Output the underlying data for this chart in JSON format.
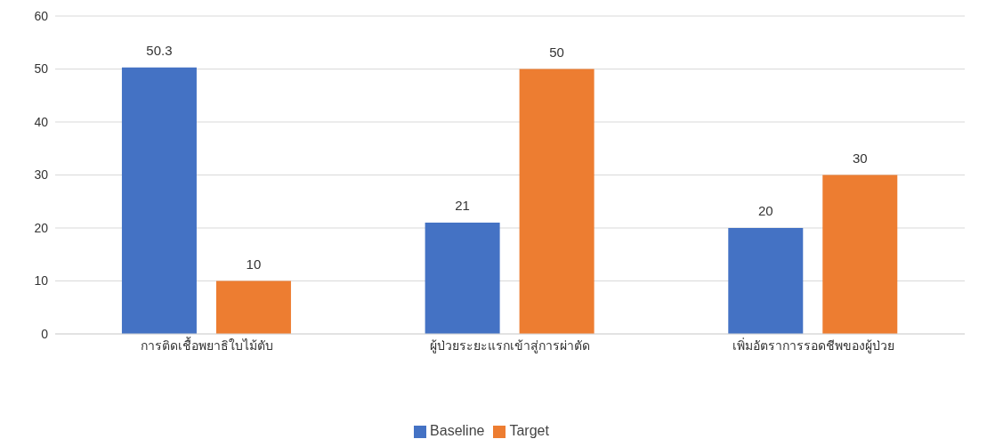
{
  "chart_data": {
    "type": "bar",
    "categories": [
      "การติดเชื้อพยาธิใบไม้ตับ",
      "ผู้ป่วยระยะแรกเข้าสู่การผ่าตัด",
      "เพิ่มอัตราการรอดชีพของผู้ป่วย"
    ],
    "series": [
      {
        "name": "Baseline",
        "color": "#4472c4",
        "values": [
          50.3,
          21,
          20
        ]
      },
      {
        "name": "Target",
        "color": "#ed7d31",
        "values": [
          10,
          50,
          30
        ]
      }
    ],
    "ylim": [
      0,
      60
    ],
    "yticks": [
      0,
      10,
      20,
      30,
      40,
      50,
      60
    ],
    "grid": "y",
    "legend": "bottom",
    "data_labels": true
  }
}
